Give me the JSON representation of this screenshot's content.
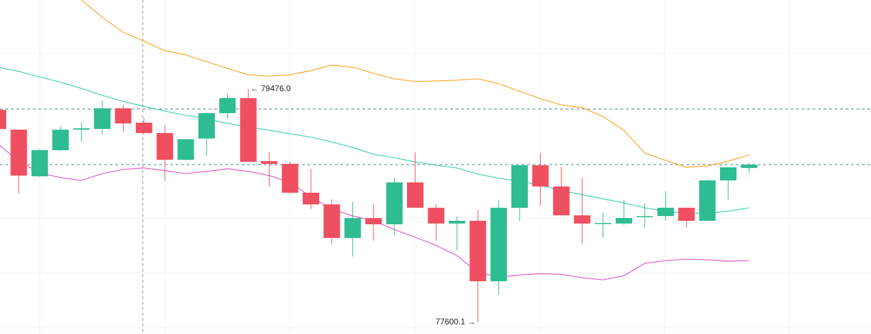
{
  "chart_data": {
    "type": "candlestick",
    "categories": [
      null,
      null,
      null,
      null,
      null,
      null,
      null,
      null,
      null,
      null,
      null,
      null,
      null,
      null,
      null,
      null,
      null,
      null,
      null,
      null,
      null,
      null,
      null,
      null,
      null,
      null,
      null,
      null,
      null,
      null,
      null,
      null,
      null,
      null,
      null,
      null,
      null
    ],
    "open": [
      79310,
      79150,
      78775,
      78985,
      79150,
      79156,
      79322,
      79206,
      79123,
      78908,
      79079,
      79283,
      79404,
      78897,
      78875,
      78643,
      78549,
      78279,
      78439,
      78389,
      78726,
      78522,
      78395,
      78417,
      77931,
      78522,
      78864,
      78693,
      78461,
      78395,
      78395,
      78450,
      78455,
      78522,
      78417,
      78742,
      78842
    ],
    "high": [
      79322,
      79150,
      78996,
      79178,
      79211,
      79388,
      79349,
      79244,
      79189,
      79073,
      79283,
      79437,
      79476,
      78968,
      78891,
      78836,
      78588,
      78571,
      78555,
      78764,
      78968,
      78549,
      78450,
      78505,
      78582,
      78864,
      78963,
      78853,
      78764,
      78483,
      78588,
      78555,
      78654,
      78522,
      78748,
      78847,
      78880
    ],
    "low": [
      79150,
      78637,
      78770,
      78979,
      79051,
      79112,
      79134,
      79117,
      78737,
      78902,
      78941,
      79233,
      78891,
      78693,
      78637,
      78510,
      78229,
      78130,
      78257,
      78306,
      78522,
      78257,
      78180,
      77600.1,
      77821,
      78411,
      78538,
      78461,
      78229,
      78284,
      78384,
      78362,
      78417,
      78367,
      78417,
      78588,
      78803
    ],
    "close": [
      79156,
      78781,
      78985,
      79150,
      79161,
      79322,
      79200,
      79123,
      78908,
      79073,
      79283,
      79404,
      78891,
      78875,
      78643,
      78549,
      78279,
      78439,
      78389,
      78726,
      78522,
      78395,
      78417,
      77931,
      78522,
      78864,
      78693,
      78461,
      78395,
      78400,
      78439,
      78455,
      78522,
      78417,
      78742,
      78847,
      78869
    ],
    "up_color": "#2ebd92",
    "down_color": "#ef5061",
    "series": [
      {
        "color": "#f5aa28",
        "values": [
          null,
          null,
          null,
          null,
          80193,
          80055,
          79934,
          79862,
          79785,
          79752,
          79697,
          79642,
          79592,
          79581,
          79592,
          79625,
          79669,
          79653,
          79603,
          79559,
          79537,
          79542,
          79548,
          79559,
          79520,
          79459,
          79399,
          79349,
          79327,
          79255,
          79145,
          78963,
          78902,
          78847,
          78858,
          78897,
          78946
        ]
      },
      {
        "color": "#3fd0b4",
        "values": [
          79653,
          79619,
          79575,
          79531,
          79482,
          79426,
          79377,
          79338,
          79299,
          79266,
          79239,
          79200,
          79173,
          79145,
          79117,
          79090,
          79051,
          79007,
          78952,
          78924,
          78891,
          78864,
          78842,
          78792,
          78759,
          78737,
          78704,
          78660,
          78627,
          78594,
          78561,
          78522,
          78494,
          78478,
          78478,
          78494,
          78522
        ]
      },
      {
        "color": "#e05ac6",
        "values": [
          79035,
          78897,
          78803,
          78764,
          78742,
          78797,
          78830,
          78842,
          78820,
          78797,
          78814,
          78836,
          78814,
          78781,
          78726,
          78610,
          78511,
          78456,
          78418,
          78346,
          78285,
          78219,
          78136,
          78003,
          77964,
          77981,
          77992,
          77986,
          77959,
          77942,
          77975,
          78075,
          78097,
          78108,
          78103,
          78092,
          78097
        ]
      }
    ],
    "reference_lines": [
      79316,
      78869
    ],
    "ylim": [
      77506.4,
      80193.2
    ],
    "annotations": [
      {
        "text": "← 79476.0",
        "index": 12,
        "side": "right"
      },
      {
        "text": "77600.1 →",
        "index": 23,
        "side": "left"
      }
    ]
  }
}
